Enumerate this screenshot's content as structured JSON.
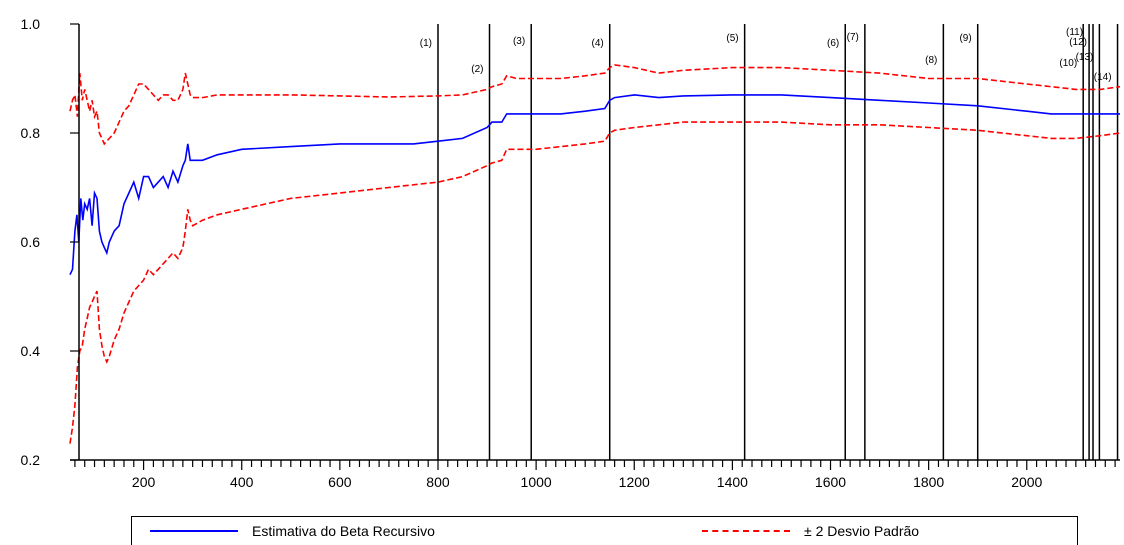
{
  "chart_data": {
    "type": "line",
    "title": "",
    "xlabel": "",
    "ylabel": "",
    "xlim": [
      50,
      2190
    ],
    "ylim": [
      0.2,
      1.0
    ],
    "x_ticks": [
      200,
      400,
      600,
      800,
      1000,
      1200,
      1400,
      1600,
      1800,
      2000
    ],
    "y_ticks": [
      0.2,
      0.4,
      0.6,
      0.8,
      1.0
    ],
    "x_tick_labels": [
      "200",
      "400",
      "600",
      "800",
      "1000",
      "1200",
      "1400",
      "1600",
      "1800",
      "2000"
    ],
    "y_tick_labels": [
      "0.2",
      "0.4",
      "0.6",
      "0.8",
      "1.0"
    ],
    "grid": false,
    "legend_position": "bottom",
    "series": [
      {
        "name": "Estimativa do Beta Recursivo",
        "color": "#0000ff",
        "style": "solid",
        "x": [
          50,
          55,
          60,
          64,
          68,
          72,
          76,
          80,
          85,
          90,
          95,
          100,
          105,
          110,
          115,
          120,
          125,
          130,
          140,
          150,
          160,
          170,
          180,
          190,
          200,
          210,
          220,
          230,
          240,
          250,
          260,
          270,
          280,
          285,
          290,
          295,
          300,
          320,
          350,
          400,
          500,
          600,
          700,
          750,
          800,
          850,
          900,
          910,
          930,
          940,
          960,
          1000,
          1050,
          1100,
          1140,
          1150,
          1160,
          1200,
          1250,
          1300,
          1400,
          1500,
          1600,
          1700,
          1800,
          1900,
          2000,
          2050,
          2100,
          2150,
          2190
        ],
        "y": [
          0.54,
          0.55,
          0.62,
          0.65,
          0.6,
          0.68,
          0.64,
          0.67,
          0.66,
          0.68,
          0.63,
          0.69,
          0.68,
          0.62,
          0.6,
          0.59,
          0.58,
          0.6,
          0.62,
          0.63,
          0.67,
          0.69,
          0.71,
          0.68,
          0.72,
          0.72,
          0.7,
          0.71,
          0.72,
          0.7,
          0.73,
          0.71,
          0.74,
          0.75,
          0.78,
          0.75,
          0.75,
          0.75,
          0.76,
          0.77,
          0.775,
          0.78,
          0.78,
          0.78,
          0.785,
          0.79,
          0.81,
          0.82,
          0.82,
          0.835,
          0.835,
          0.835,
          0.835,
          0.84,
          0.845,
          0.86,
          0.865,
          0.87,
          0.865,
          0.868,
          0.87,
          0.87,
          0.865,
          0.86,
          0.855,
          0.85,
          0.84,
          0.835,
          0.835,
          0.835,
          0.835
        ]
      },
      {
        "name": "± 2 Desvio Padrão",
        "color": "#ff0000",
        "style": "dashed",
        "x": [
          50,
          55,
          60,
          65,
          70,
          75,
          80,
          85,
          90,
          95,
          100,
          105,
          110,
          115,
          120,
          125,
          130,
          140,
          150,
          160,
          170,
          180,
          190,
          200,
          210,
          220,
          230,
          240,
          250,
          260,
          270,
          280,
          285,
          290,
          295,
          300,
          320,
          350,
          400,
          500,
          600,
          700,
          800,
          850,
          900,
          910,
          930,
          940,
          960,
          1000,
          1050,
          1100,
          1140,
          1150,
          1160,
          1200,
          1250,
          1300,
          1400,
          1500,
          1600,
          1700,
          1800,
          1900,
          2000,
          2050,
          2100,
          2150,
          2190
        ],
        "y": [
          0.84,
          0.86,
          0.87,
          0.83,
          0.91,
          0.86,
          0.88,
          0.86,
          0.84,
          0.86,
          0.83,
          0.84,
          0.8,
          0.79,
          0.78,
          0.785,
          0.79,
          0.8,
          0.82,
          0.84,
          0.85,
          0.87,
          0.89,
          0.89,
          0.88,
          0.87,
          0.86,
          0.87,
          0.87,
          0.86,
          0.86,
          0.88,
          0.91,
          0.89,
          0.87,
          0.865,
          0.865,
          0.87,
          0.87,
          0.87,
          0.868,
          0.866,
          0.868,
          0.87,
          0.88,
          0.885,
          0.89,
          0.905,
          0.9,
          0.9,
          0.9,
          0.905,
          0.91,
          0.92,
          0.925,
          0.92,
          0.91,
          0.915,
          0.92,
          0.92,
          0.915,
          0.91,
          0.9,
          0.9,
          0.89,
          0.885,
          0.88,
          0.88,
          0.885
        ],
        "band_lower": {
          "x": [
            50,
            55,
            60,
            65,
            70,
            75,
            80,
            85,
            90,
            95,
            100,
            105,
            110,
            115,
            120,
            125,
            130,
            140,
            150,
            160,
            170,
            180,
            190,
            200,
            210,
            220,
            230,
            240,
            250,
            260,
            270,
            280,
            285,
            290,
            295,
            300,
            320,
            350,
            400,
            500,
            600,
            700,
            800,
            850,
            900,
            910,
            930,
            940,
            960,
            1000,
            1050,
            1100,
            1140,
            1150,
            1160,
            1200,
            1250,
            1300,
            1400,
            1500,
            1600,
            1700,
            1800,
            1900,
            2000,
            2050,
            2100,
            2150,
            2190
          ],
          "y": [
            0.23,
            0.26,
            0.3,
            0.37,
            0.4,
            0.41,
            0.44,
            0.46,
            0.48,
            0.49,
            0.5,
            0.51,
            0.44,
            0.41,
            0.39,
            0.38,
            0.39,
            0.42,
            0.44,
            0.47,
            0.49,
            0.51,
            0.52,
            0.53,
            0.55,
            0.54,
            0.55,
            0.56,
            0.57,
            0.58,
            0.57,
            0.59,
            0.62,
            0.66,
            0.64,
            0.63,
            0.64,
            0.65,
            0.66,
            0.68,
            0.69,
            0.7,
            0.71,
            0.72,
            0.74,
            0.745,
            0.75,
            0.77,
            0.77,
            0.77,
            0.775,
            0.78,
            0.785,
            0.8,
            0.805,
            0.81,
            0.815,
            0.82,
            0.82,
            0.82,
            0.815,
            0.815,
            0.81,
            0.805,
            0.795,
            0.79,
            0.79,
            0.795,
            0.8
          ]
        }
      }
    ],
    "event_lines": [
      {
        "x": 800,
        "label": "(1)"
      },
      {
        "x": 905,
        "label": "(2)"
      },
      {
        "x": 990,
        "label": "(3)"
      },
      {
        "x": 1150,
        "label": "(4)"
      },
      {
        "x": 1425,
        "label": "(5)"
      },
      {
        "x": 1630,
        "label": "(6)"
      },
      {
        "x": 1670,
        "label": "(7)"
      },
      {
        "x": 1830,
        "label": "(8)"
      },
      {
        "x": 1900,
        "label": "(9)"
      },
      {
        "x": 2115,
        "label": "(10)"
      },
      {
        "x": 2127,
        "label": "(11)"
      },
      {
        "x": 2135,
        "label": "(12)"
      },
      {
        "x": 2148,
        "label": "(13)"
      },
      {
        "x": 2185,
        "label": "(14)"
      }
    ]
  },
  "legend": {
    "blue_label": "Estimativa do Beta Recursivo",
    "red_label": "± 2 Desvio Padrão"
  }
}
